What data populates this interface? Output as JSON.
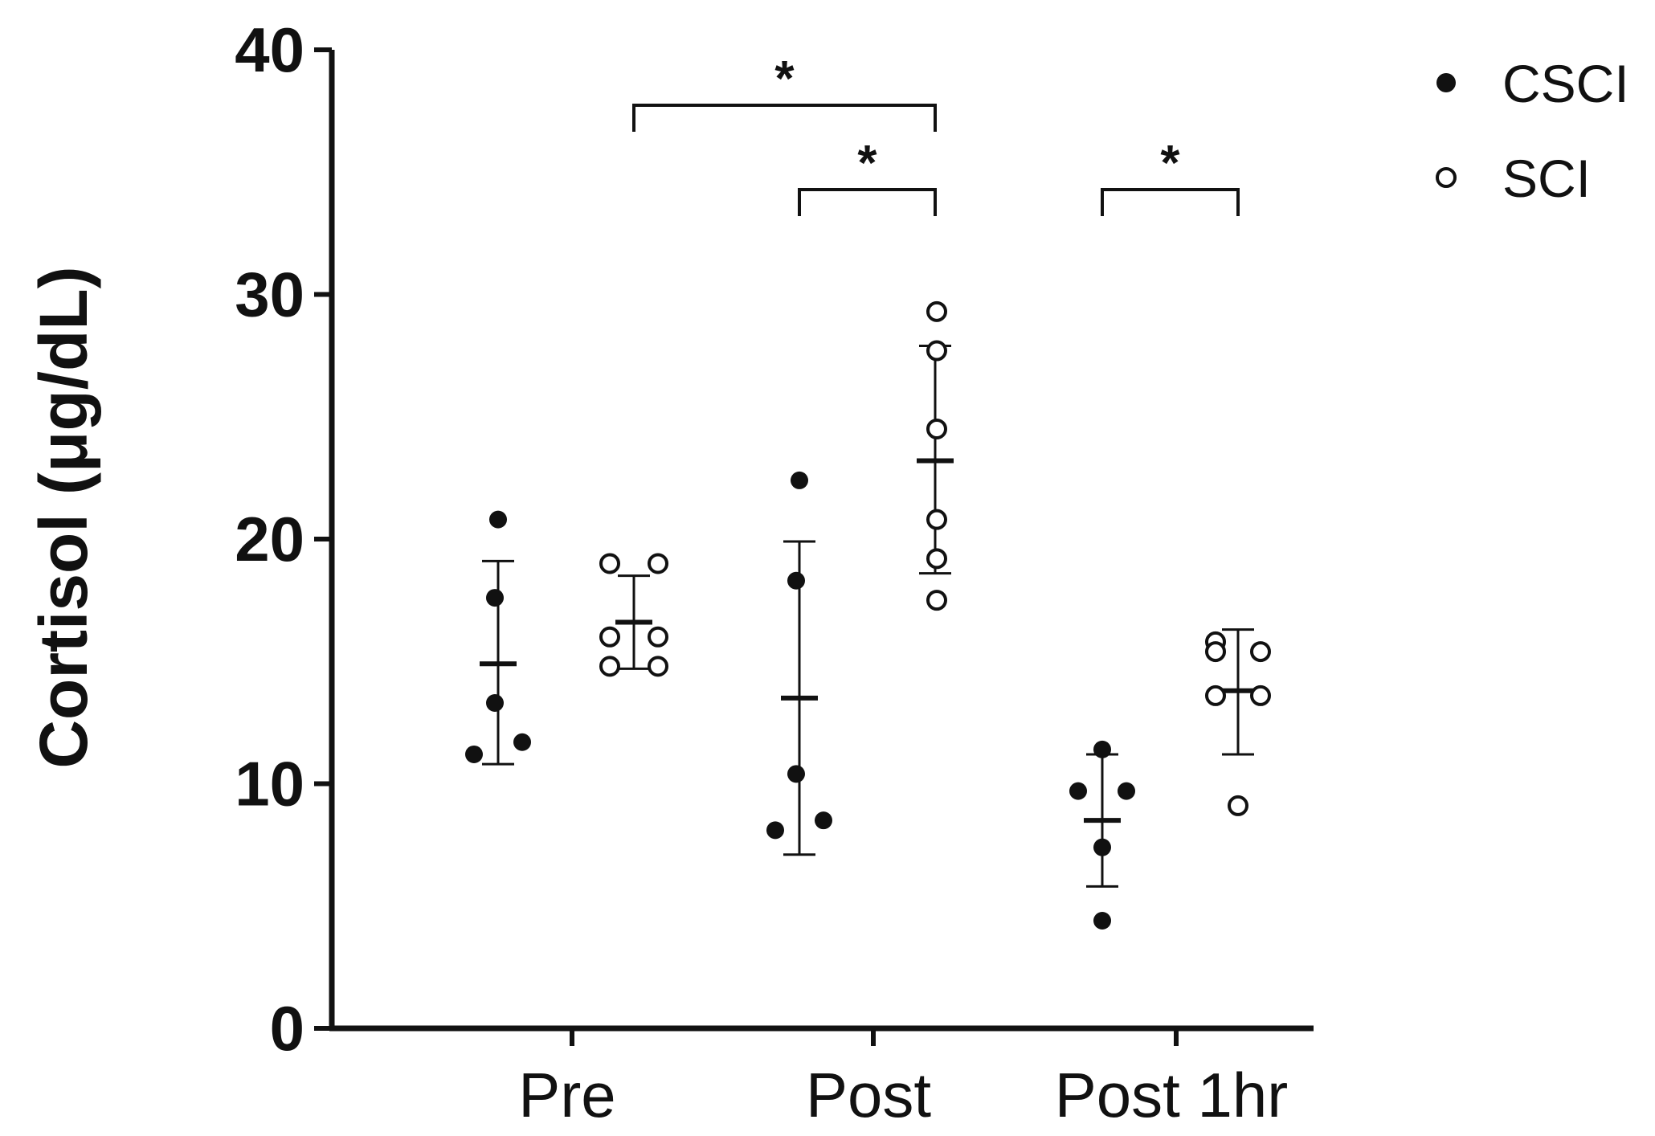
{
  "chart_data": {
    "type": "scatter",
    "title": "",
    "xlabel": "",
    "ylabel": "Cortisol (μg/dL)",
    "ylim": [
      0,
      40
    ],
    "yticks": [
      "0",
      "10",
      "20",
      "30",
      "40"
    ],
    "categories": [
      "Pre",
      "Post",
      "Post 1hr"
    ],
    "grid": false,
    "legend_position": "top-right",
    "series": [
      {
        "name": "CSCI",
        "marker": "filled-circle",
        "color": "#111111",
        "points": [
          [
            20.8,
            17.6,
            13.3,
            11.7,
            11.2
          ],
          [
            22.4,
            18.3,
            10.4,
            8.5,
            8.1
          ],
          [
            11.4,
            9.7,
            9.7,
            7.4,
            4.4
          ]
        ],
        "means": [
          14.9,
          13.5,
          8.5
        ],
        "sd_upper": [
          19.1,
          19.9,
          11.2
        ],
        "sd_lower": [
          10.8,
          7.1,
          5.8
        ]
      },
      {
        "name": "SCI",
        "marker": "open-circle",
        "color": "#111111",
        "points": [
          [
            19.0,
            19.0,
            16.0,
            16.0,
            14.8,
            14.8
          ],
          [
            29.3,
            27.7,
            24.5,
            20.8,
            19.2,
            17.5
          ],
          [
            15.8,
            15.4,
            15.4,
            13.6,
            13.6,
            9.1
          ]
        ],
        "means": [
          16.6,
          23.2,
          13.8
        ],
        "sd_upper": [
          18.5,
          27.9,
          16.3
        ],
        "sd_lower": [
          14.7,
          18.6,
          11.2
        ]
      }
    ],
    "annotations": [
      {
        "text": "*",
        "from": {
          "category": 0,
          "series": 1
        },
        "to": {
          "category": 1,
          "series": 1
        },
        "level": 1
      },
      {
        "text": "*",
        "from": {
          "category": 1,
          "series": 0
        },
        "to": {
          "category": 1,
          "series": 1
        },
        "level": 0
      },
      {
        "text": "*",
        "from": {
          "category": 2,
          "series": 0
        },
        "to": {
          "category": 2,
          "series": 1
        },
        "level": 0
      }
    ]
  }
}
